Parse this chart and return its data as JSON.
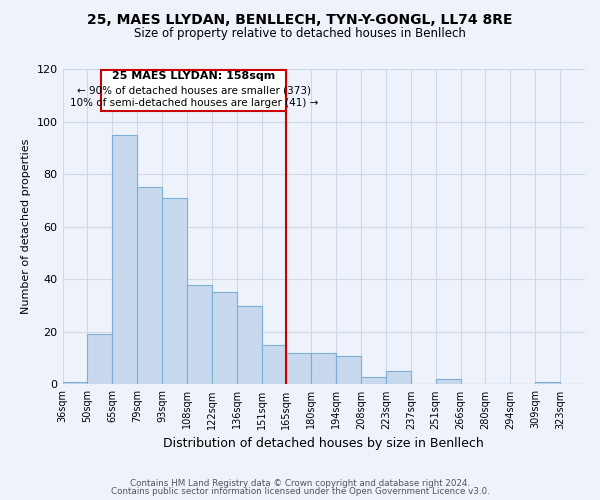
{
  "title1": "25, MAES LLYDAN, BENLLECH, TYN-Y-GONGL, LL74 8RE",
  "title2": "Size of property relative to detached houses in Benllech",
  "xlabel": "Distribution of detached houses by size in Benllech",
  "ylabel": "Number of detached properties",
  "categories": [
    "36sqm",
    "50sqm",
    "65sqm",
    "79sqm",
    "93sqm",
    "108sqm",
    "122sqm",
    "136sqm",
    "151sqm",
    "165sqm",
    "180sqm",
    "194sqm",
    "208sqm",
    "223sqm",
    "237sqm",
    "251sqm",
    "266sqm",
    "280sqm",
    "294sqm",
    "309sqm",
    "323sqm"
  ],
  "values": [
    1,
    19,
    95,
    75,
    71,
    38,
    35,
    30,
    15,
    12,
    12,
    11,
    3,
    5,
    0,
    2,
    0,
    0,
    0,
    1,
    0
  ],
  "bar_color": "#c8d9ee",
  "bar_edge_color": "#7bafd4",
  "vline_color": "#cc0000",
  "annotation_title": "25 MAES LLYDAN: 158sqm",
  "annotation_line1": "← 90% of detached houses are smaller (373)",
  "annotation_line2": "10% of semi-detached houses are larger (41) →",
  "annotation_box_color": "#ffffff",
  "annotation_box_edge": "#cc0000",
  "footer1": "Contains HM Land Registry data © Crown copyright and database right 2024.",
  "footer2": "Contains public sector information licensed under the Open Government Licence v3.0.",
  "ylim": [
    0,
    120
  ],
  "grid_color": "#d0d8e8",
  "background_color": "#eef2fa"
}
